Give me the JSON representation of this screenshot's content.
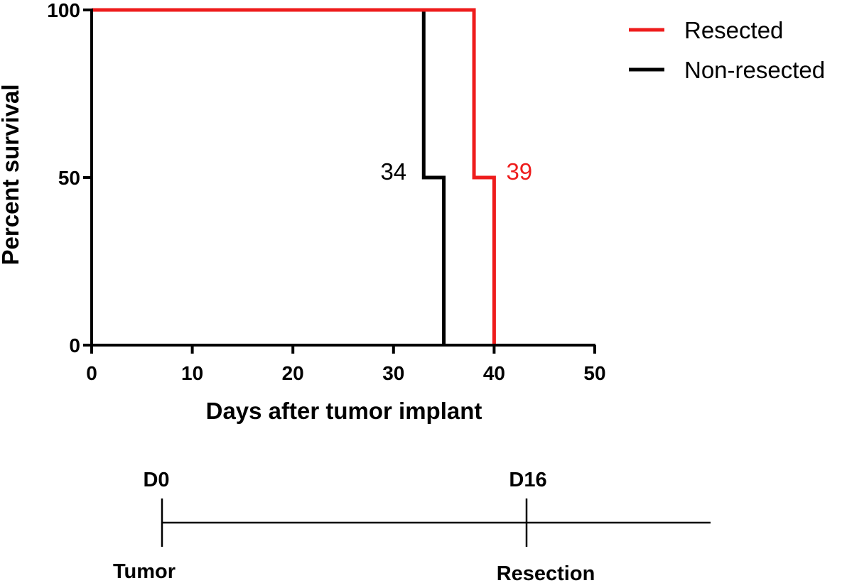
{
  "chart_data": {
    "type": "line",
    "subtype": "kaplan-meier-step",
    "xlabel": "Days after tumor implant",
    "ylabel": "Percent survival",
    "xlim": [
      0,
      50
    ],
    "ylim": [
      0,
      100
    ],
    "x_ticks": [
      "0",
      "10",
      "20",
      "30",
      "40",
      "50"
    ],
    "y_ticks": [
      "0",
      "50",
      "100"
    ],
    "grid": false,
    "legend_position": "top-right",
    "series": [
      {
        "name": "Resected",
        "color": "#ee1c1c",
        "x": [
          0,
          38,
          38,
          40,
          40
        ],
        "y": [
          100,
          100,
          50,
          50,
          0
        ]
      },
      {
        "name": "Non-resected",
        "color": "#000000",
        "x": [
          0,
          33,
          33,
          35,
          35
        ],
        "y": [
          100,
          100,
          50,
          50,
          0
        ]
      }
    ],
    "annotations": [
      {
        "text": "34",
        "color": "#000000",
        "x": 30,
        "y": 50
      },
      {
        "text": "39",
        "color": "#ee1c1c",
        "x": 42.5,
        "y": 50
      }
    ]
  },
  "timeline": {
    "events": [
      {
        "top_label": "D0",
        "bottom_label": "Tumor"
      },
      {
        "top_label": "D16",
        "bottom_label": "Resection"
      }
    ]
  }
}
